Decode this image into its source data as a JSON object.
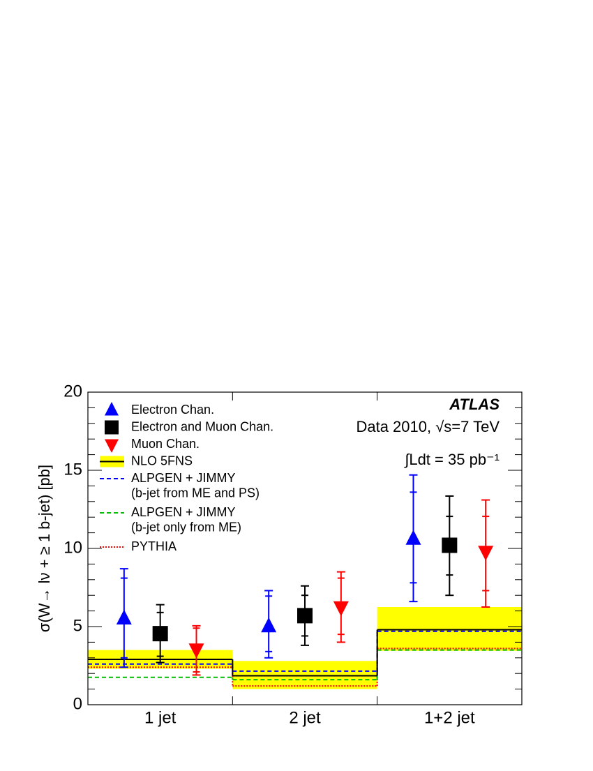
{
  "chart_data": {
    "type": "errorbar",
    "ylabel": "σ(W→ lν + ≥ 1 b-jet) [pb]",
    "experiment": "ATLAS",
    "energy": "Data 2010, √s=7 TeV",
    "luminosity": "∫Ldt = 35 pb⁻¹",
    "categories": [
      "1 jet",
      "2 jet",
      "1+2 jet"
    ],
    "ylim": [
      0,
      20
    ],
    "yticks": [
      0,
      5,
      10,
      15,
      20
    ],
    "data_series": [
      {
        "name": "Electron Chan.",
        "color": "#0000ff",
        "marker": "triangle-up",
        "values": [
          5.5,
          5.0,
          10.6
        ],
        "stat_low": [
          3.0,
          3.4,
          7.8
        ],
        "stat_high": [
          8.1,
          6.95,
          13.6
        ],
        "total_low": [
          2.4,
          3.0,
          6.6
        ],
        "total_high": [
          8.7,
          7.3,
          14.7
        ]
      },
      {
        "name": "Electron and Muon Chan.",
        "color": "#000000",
        "marker": "square",
        "values": [
          4.55,
          5.7,
          10.2
        ],
        "stat_low": [
          3.1,
          4.4,
          8.3
        ],
        "stat_high": [
          5.9,
          7.0,
          12.05
        ],
        "total_low": [
          2.7,
          3.8,
          7.0
        ],
        "total_high": [
          6.4,
          7.6,
          13.35
        ]
      },
      {
        "name": "Muon Chan.",
        "color": "#ff0000",
        "marker": "triangle-down",
        "values": [
          3.55,
          6.25,
          9.8
        ],
        "stat_low": [
          2.1,
          4.5,
          7.3
        ],
        "stat_high": [
          4.9,
          8.1,
          12.05
        ],
        "total_low": [
          1.9,
          4.0,
          6.25
        ],
        "total_high": [
          5.05,
          8.5,
          13.1
        ]
      }
    ],
    "predictions": [
      {
        "name": "NLO 5FNS",
        "color": "#000000",
        "style": "solid",
        "band_color": "#ffff00",
        "values": [
          2.9,
          1.85,
          4.8
        ],
        "band_low": [
          2.3,
          1.0,
          3.45
        ],
        "band_high": [
          3.5,
          2.8,
          6.25
        ]
      },
      {
        "name": "ALPGEN + JIMMY",
        "note": "(b-jet from ME and PS)",
        "color": "#0000ff",
        "style": "dashed",
        "values": [
          2.6,
          2.15,
          4.7
        ]
      },
      {
        "name": "ALPGEN + JIMMY",
        "note": "(b-jet only from ME)",
        "color": "#00bb00",
        "style": "dashed",
        "values": [
          1.75,
          1.6,
          3.5
        ]
      },
      {
        "name": "PYTHIA",
        "color": "#ff0000",
        "style": "dotted",
        "values": [
          2.4,
          1.2,
          3.6
        ]
      }
    ]
  }
}
